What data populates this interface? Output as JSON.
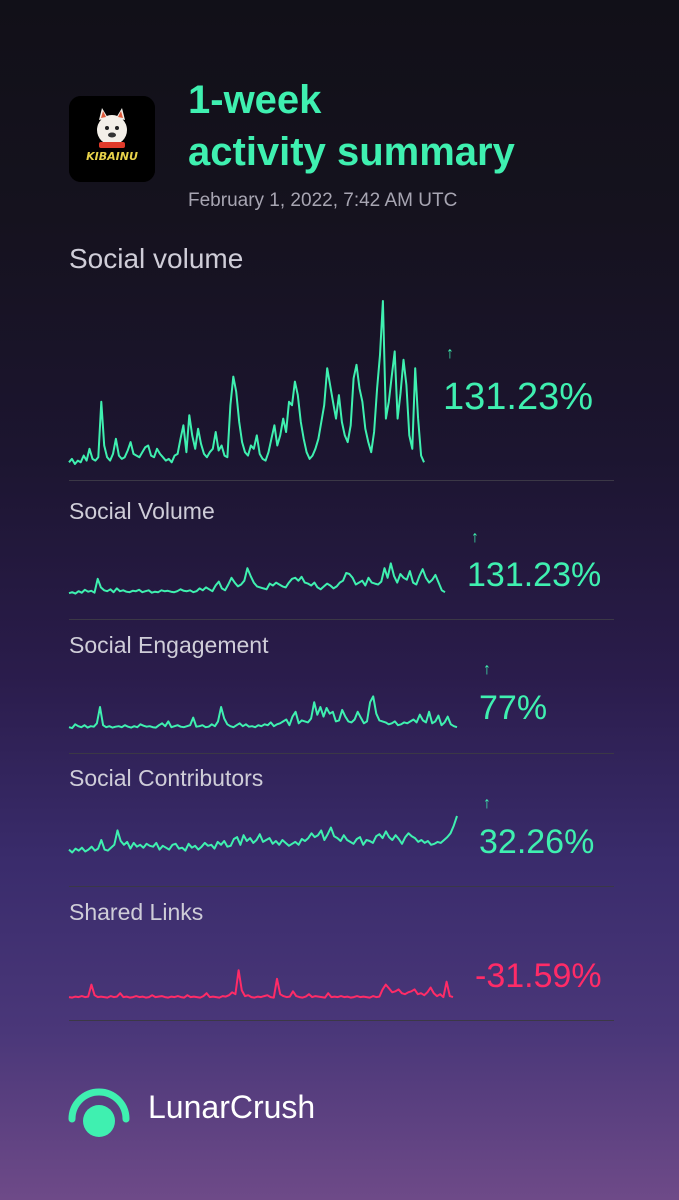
{
  "header": {
    "title_line1": "1-week",
    "title_line2": "activity summary",
    "timestamp": "February 1, 2022, 7:42 AM UTC",
    "token_logo_text": "KIBAINU"
  },
  "colors": {
    "up": "#3ff0b0",
    "down": "#ff2b67",
    "accent": "#3ff0b0"
  },
  "main_metric": {
    "label": "Social volume",
    "arrow": "↑",
    "change": "131.23%",
    "direction": "up"
  },
  "metrics": [
    {
      "label": "Social Volume",
      "arrow": "↑",
      "change": "131.23%",
      "direction": "up"
    },
    {
      "label": "Social Engagement",
      "arrow": "↑",
      "change": "77%",
      "direction": "up"
    },
    {
      "label": "Social Contributors",
      "arrow": "↑",
      "change": "32.26%",
      "direction": "up"
    },
    {
      "label": "Shared Links",
      "arrow": "",
      "change": "-31.59%",
      "direction": "down"
    }
  ],
  "chart_data": [
    {
      "type": "line",
      "title": "Social volume",
      "values": [
        4,
        6,
        3,
        5,
        4,
        8,
        5,
        12,
        6,
        5,
        7,
        40,
        14,
        7,
        5,
        9,
        18,
        8,
        6,
        7,
        11,
        16,
        9,
        8,
        7,
        10,
        13,
        14,
        8,
        7,
        12,
        9,
        7,
        5,
        6,
        4,
        8,
        9,
        18,
        26,
        10,
        32,
        20,
        12,
        24,
        15,
        9,
        7,
        10,
        12,
        22,
        11,
        14,
        8,
        7,
        38,
        55,
        46,
        28,
        16,
        10,
        8,
        14,
        12,
        20,
        9,
        6,
        5,
        10,
        18,
        26,
        14,
        20,
        30,
        22,
        40,
        38,
        52,
        44,
        28,
        18,
        10,
        6,
        8,
        12,
        18,
        28,
        38,
        60,
        50,
        40,
        30,
        44,
        28,
        20,
        16,
        26,
        54,
        62,
        48,
        40,
        24,
        16,
        10,
        22,
        48,
        68,
        100,
        30,
        40,
        55,
        70,
        30,
        45,
        65,
        50,
        20,
        12,
        60,
        30,
        8,
        4
      ],
      "ylim": [
        0,
        100
      ]
    },
    {
      "type": "line",
      "title": "Social Volume",
      "values": [
        8,
        10,
        7,
        12,
        9,
        15,
        11,
        13,
        9,
        38,
        20,
        14,
        12,
        16,
        10,
        18,
        12,
        14,
        11,
        10,
        13,
        12,
        15,
        10,
        12,
        14,
        9,
        11,
        10,
        14,
        12,
        13,
        11,
        10,
        12,
        16,
        13,
        12,
        14,
        10,
        12,
        18,
        14,
        20,
        16,
        12,
        24,
        32,
        18,
        14,
        26,
        40,
        30,
        22,
        26,
        34,
        60,
        44,
        30,
        22,
        20,
        18,
        16,
        28,
        24,
        30,
        26,
        22,
        20,
        30,
        38,
        40,
        34,
        42,
        30,
        28,
        24,
        30,
        20,
        16,
        22,
        28,
        24,
        18,
        22,
        30,
        34,
        50,
        48,
        40,
        26,
        30,
        34,
        24,
        40,
        30,
        28,
        26,
        32,
        60,
        40,
        70,
        44,
        30,
        48,
        40,
        36,
        54,
        30,
        26,
        44,
        58,
        40,
        30,
        36,
        46,
        30,
        14,
        10
      ],
      "ylim": [
        0,
        100
      ]
    },
    {
      "type": "line",
      "title": "Social Engagement",
      "values": [
        8,
        6,
        14,
        10,
        8,
        12,
        7,
        10,
        9,
        16,
        50,
        12,
        8,
        10,
        7,
        9,
        10,
        8,
        12,
        9,
        7,
        10,
        8,
        14,
        11,
        9,
        10,
        8,
        7,
        12,
        16,
        10,
        20,
        8,
        10,
        12,
        9,
        8,
        10,
        12,
        28,
        9,
        10,
        12,
        8,
        9,
        14,
        10,
        20,
        50,
        26,
        14,
        10,
        8,
        12,
        16,
        10,
        14,
        9,
        10,
        8,
        12,
        10,
        14,
        12,
        18,
        10,
        14,
        16,
        20,
        24,
        12,
        30,
        40,
        16,
        22,
        20,
        18,
        26,
        60,
        34,
        50,
        30,
        48,
        36,
        40,
        20,
        22,
        44,
        30,
        20,
        18,
        24,
        40,
        28,
        16,
        20,
        60,
        72,
        36,
        22,
        20,
        18,
        14,
        16,
        20,
        12,
        14,
        18,
        16,
        20,
        24,
        18,
        34,
        22,
        18,
        40,
        16,
        20,
        32,
        12,
        18,
        30,
        14,
        10,
        8
      ],
      "ylim": [
        0,
        100
      ]
    },
    {
      "type": "line",
      "title": "Social Contributors",
      "values": [
        30,
        24,
        32,
        28,
        34,
        26,
        30,
        36,
        28,
        32,
        50,
        30,
        28,
        34,
        40,
        70,
        48,
        40,
        46,
        32,
        44,
        36,
        40,
        34,
        42,
        38,
        36,
        44,
        30,
        38,
        34,
        30,
        40,
        42,
        32,
        34,
        28,
        42,
        34,
        38,
        30,
        36,
        44,
        38,
        40,
        32,
        46,
        40,
        48,
        36,
        38,
        52,
        56,
        40,
        60,
        48,
        54,
        44,
        50,
        62,
        46,
        50,
        54,
        42,
        48,
        40,
        50,
        44,
        38,
        42,
        46,
        40,
        52,
        48,
        54,
        64,
        56,
        60,
        70,
        50,
        62,
        76,
        58,
        54,
        48,
        60,
        50,
        46,
        42,
        52,
        56,
        40,
        50,
        48,
        44,
        58,
        62,
        54,
        68,
        56,
        50,
        60,
        52,
        42,
        56,
        64,
        58,
        54,
        46,
        50,
        44,
        48,
        40,
        42,
        46,
        44,
        50,
        56,
        64,
        80,
        100
      ],
      "ylim": [
        0,
        100
      ]
    },
    {
      "type": "line",
      "title": "Shared Links",
      "values": [
        4,
        3,
        5,
        4,
        6,
        4,
        5,
        30,
        8,
        4,
        5,
        4,
        3,
        6,
        4,
        5,
        12,
        4,
        5,
        3,
        4,
        6,
        4,
        5,
        3,
        4,
        8,
        4,
        5,
        6,
        4,
        3,
        5,
        4,
        6,
        4,
        3,
        8,
        4,
        5,
        4,
        3,
        6,
        12,
        4,
        5,
        4,
        3,
        6,
        5,
        8,
        14,
        10,
        60,
        18,
        6,
        8,
        4,
        3,
        5,
        4,
        6,
        8,
        4,
        3,
        42,
        10,
        6,
        4,
        5,
        16,
        6,
        4,
        3,
        5,
        10,
        4,
        6,
        5,
        4,
        3,
        12,
        4,
        5,
        4,
        6,
        4,
        5,
        3,
        4,
        6,
        4,
        5,
        4,
        3,
        6,
        4,
        5,
        20,
        30,
        22,
        14,
        16,
        20,
        12,
        10,
        14,
        16,
        20,
        10,
        12,
        8,
        14,
        24,
        12,
        6,
        10,
        4,
        36,
        6,
        4
      ],
      "ylim": [
        0,
        100
      ]
    }
  ]
}
